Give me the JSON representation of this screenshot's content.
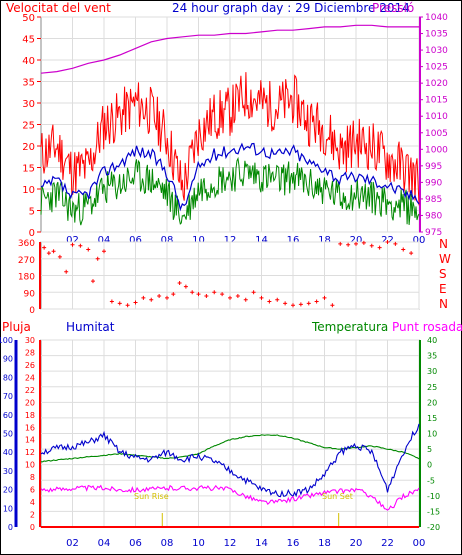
{
  "chart_data": [
    {
      "type": "line",
      "title": "24 hour graph day : 29 Diciembre 2014",
      "ylabel_left": "Velocitat del vent",
      "ylabel_right": "Pressió",
      "x_ticks": [
        "02",
        "04",
        "06",
        "08",
        "10",
        "12",
        "14",
        "16",
        "18",
        "20",
        "22",
        "00"
      ],
      "left_ticks": [
        0,
        5,
        10,
        15,
        20,
        25,
        30,
        35,
        40,
        45,
        50
      ],
      "right_ticks": [
        975,
        980,
        985,
        990,
        995,
        1000,
        1005,
        1010,
        1015,
        1020,
        1025,
        1030,
        1035,
        1040
      ],
      "ylim_left": [
        0,
        50
      ],
      "ylim_right": [
        975,
        1040
      ],
      "colors": {
        "gust": "#ff0000",
        "average": "#0000cc",
        "wind": "#008800",
        "pressure": "#cc00cc"
      },
      "series": [
        {
          "name": "Pressió",
          "axis": "right",
          "x": [
            0,
            1,
            2,
            3,
            4,
            5,
            6,
            7,
            8,
            9,
            10,
            11,
            12,
            13,
            14,
            15,
            16,
            17,
            18,
            19,
            20,
            21,
            22,
            23,
            24
          ],
          "values": [
            1023,
            1023.5,
            1024.5,
            1026,
            1027,
            1028.5,
            1030.5,
            1032.5,
            1033.5,
            1034,
            1034.5,
            1034.5,
            1035,
            1035,
            1035.5,
            1036,
            1036,
            1036.5,
            1037,
            1037,
            1037.5,
            1037.5,
            1037,
            1037,
            1037
          ]
        },
        {
          "axis": "left",
          "role": "gust",
          "x": [
            0,
            1,
            2,
            3,
            4,
            5,
            6,
            7,
            8,
            9,
            10,
            11,
            12,
            13,
            14,
            15,
            16,
            17,
            18,
            19,
            20,
            21,
            22,
            23,
            24
          ],
          "values": [
            18,
            20,
            14,
            15,
            25,
            27,
            30,
            28,
            22,
            10,
            23,
            27,
            28,
            32,
            30,
            29,
            31,
            26,
            24,
            19,
            21,
            20,
            17,
            15,
            12
          ]
        },
        {
          "axis": "left",
          "role": "average",
          "x": [
            0,
            1,
            2,
            3,
            4,
            5,
            6,
            7,
            8,
            9,
            10,
            11,
            12,
            13,
            14,
            15,
            16,
            17,
            18,
            19,
            20,
            21,
            22,
            23,
            24
          ],
          "values": [
            10,
            12,
            8,
            9,
            14,
            16,
            19,
            18,
            14,
            5,
            15,
            18,
            19,
            20,
            19,
            18,
            19,
            16,
            15,
            12,
            13,
            12,
            11,
            9,
            8
          ]
        },
        {
          "axis": "left",
          "role": "wind",
          "x": [
            0,
            1,
            2,
            3,
            4,
            5,
            6,
            7,
            8,
            9,
            10,
            11,
            12,
            13,
            14,
            15,
            16,
            17,
            18,
            19,
            20,
            21,
            22,
            23,
            24
          ],
          "values": [
            7,
            9,
            5,
            6,
            10,
            11,
            13,
            12,
            9,
            3,
            10,
            12,
            13,
            14,
            13,
            12,
            13,
            11,
            10,
            8,
            9,
            8,
            7,
            6,
            5
          ]
        }
      ]
    },
    {
      "type": "scatter",
      "ylabel_right": [
        "N",
        "W",
        "S",
        "E",
        "N"
      ],
      "left_ticks": [
        0,
        90,
        180,
        270,
        360
      ],
      "ylim": [
        0,
        360
      ],
      "color": "#ff0000",
      "series": [
        {
          "x": [
            0.2,
            0.5,
            0.8,
            1.2,
            1.6,
            2.0,
            2.5,
            3.0,
            3.3,
            3.6,
            4.0,
            4.5,
            5.0,
            5.5,
            6.0,
            6.5,
            7.0,
            7.5,
            8.0,
            8.4,
            8.8,
            9.2,
            9.6,
            10.0,
            10.5,
            11.0,
            11.5,
            12.0,
            12.5,
            13.0,
            13.5,
            14.0,
            14.5,
            15.0,
            15.5,
            16.0,
            16.5,
            17.0,
            17.5,
            18.0,
            18.5,
            19.0,
            19.5,
            20.0,
            20.5,
            21.0,
            21.5,
            22.0,
            22.5,
            23.0,
            23.5
          ],
          "values": [
            330,
            300,
            310,
            280,
            200,
            345,
            340,
            320,
            150,
            270,
            310,
            40,
            30,
            20,
            35,
            60,
            50,
            70,
            60,
            80,
            140,
            120,
            90,
            80,
            70,
            90,
            80,
            60,
            70,
            50,
            90,
            60,
            40,
            50,
            30,
            20,
            25,
            30,
            40,
            60,
            20,
            350,
            345,
            350,
            355,
            340,
            330,
            360,
            350,
            320,
            300
          ]
        }
      ]
    },
    {
      "type": "line",
      "ylabel_left_1": "Pluja",
      "ylabel_left_2": "Humitat",
      "ylabel_right_1": "Temperatura",
      "ylabel_right_2": "Punt rosada",
      "x_ticks": [
        "02",
        "04",
        "06",
        "08",
        "10",
        "12",
        "14",
        "16",
        "18",
        "20",
        "22",
        "00"
      ],
      "humidity_ticks": [
        0,
        10,
        20,
        30,
        40,
        50,
        60,
        70,
        80,
        90,
        100
      ],
      "rain_ticks": [
        0,
        2,
        4,
        6,
        8,
        10,
        12,
        14,
        16,
        18,
        20,
        22,
        24,
        26,
        28,
        30
      ],
      "temp_ticks": [
        -20,
        -15,
        -10,
        -5,
        0,
        5,
        10,
        15,
        20,
        25,
        30,
        35,
        40
      ],
      "ylim_humidity": [
        0,
        100
      ],
      "ylim_temp": [
        -20,
        40
      ],
      "ylim_rain": [
        0,
        30
      ],
      "annotations": [
        "Sun Rise",
        "Sun Set"
      ],
      "colors": {
        "humidity": "#0000cc",
        "temperature": "#008800",
        "dewpoint": "#ff00ff",
        "rain": "#ff0000"
      },
      "series": [
        {
          "axis": "temp",
          "role": "temperature",
          "x": [
            0,
            1,
            2,
            3,
            4,
            5,
            6,
            7,
            8,
            9,
            10,
            11,
            12,
            13,
            14,
            15,
            16,
            17,
            18,
            19,
            20,
            21,
            22,
            23,
            24
          ],
          "values": [
            1,
            1.5,
            2,
            2.5,
            3,
            3.5,
            3,
            2.5,
            2,
            2.5,
            3.5,
            6,
            8,
            9,
            9.5,
            9.5,
            8.5,
            7,
            5.5,
            5,
            5.5,
            6,
            5,
            4,
            2
          ]
        },
        {
          "axis": "humidity",
          "role": "humidity",
          "x": [
            0,
            1,
            2,
            3,
            4,
            5,
            6,
            7,
            8,
            9,
            10,
            11,
            12,
            13,
            14,
            15,
            16,
            17,
            18,
            19,
            20,
            21,
            22,
            23,
            24
          ],
          "values": [
            40,
            42,
            43,
            45,
            49,
            40,
            37,
            36,
            40,
            36,
            38,
            35,
            30,
            25,
            20,
            18,
            18,
            20,
            28,
            40,
            44,
            40,
            20,
            40,
            55
          ]
        },
        {
          "axis": "temp",
          "role": "dewpoint",
          "x": [
            0,
            1,
            2,
            3,
            4,
            5,
            6,
            7,
            8,
            9,
            10,
            11,
            12,
            13,
            14,
            15,
            16,
            17,
            18,
            19,
            20,
            21,
            22,
            23,
            24
          ],
          "values": [
            -8,
            -8,
            -7.5,
            -7.5,
            -7.5,
            -8,
            -8,
            -8,
            -7.5,
            -7.5,
            -7.5,
            -7.5,
            -8,
            -10,
            -12,
            -12,
            -11,
            -10,
            -9,
            -8.5,
            -8,
            -10,
            -15,
            -10,
            -8
          ]
        },
        {
          "axis": "rain",
          "role": "rain",
          "x": [
            0,
            24
          ],
          "values": [
            0,
            0
          ]
        }
      ]
    }
  ]
}
